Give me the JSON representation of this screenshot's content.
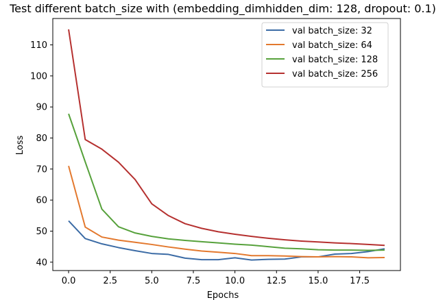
{
  "chart_data": {
    "type": "line",
    "title": "Test different batch_size with (embedding_dimhidden_dim: 128, dropout: 0.1)",
    "xlabel": "Epochs",
    "ylabel": "Loss",
    "xlim": [
      -0.95,
      19.95
    ],
    "ylim": [
      37.3,
      118.5
    ],
    "xticks": [
      0.0,
      2.5,
      5.0,
      7.5,
      10.0,
      12.5,
      15.0,
      17.5
    ],
    "xtick_labels": [
      "0.0",
      "2.5",
      "5.0",
      "7.5",
      "10.0",
      "12.5",
      "15.0",
      "17.5"
    ],
    "yticks": [
      40,
      50,
      60,
      70,
      80,
      90,
      100,
      110
    ],
    "ytick_labels": [
      "40",
      "50",
      "60",
      "70",
      "80",
      "90",
      "100",
      "110"
    ],
    "grid": false,
    "legend_position": "top-right",
    "x": [
      0,
      1,
      2,
      3,
      4,
      5,
      6,
      7,
      8,
      9,
      10,
      11,
      12,
      13,
      14,
      15,
      16,
      17,
      18,
      19
    ],
    "series": [
      {
        "name": "val batch_size: 32",
        "color": "#3b6ba5",
        "values": [
          53.3,
          47.6,
          45.9,
          44.7,
          43.7,
          42.8,
          42.5,
          41.3,
          40.8,
          40.8,
          41.4,
          40.7,
          40.9,
          41.0,
          41.7,
          41.7,
          42.6,
          42.8,
          43.4,
          44.3
        ]
      },
      {
        "name": "val batch_size: 64",
        "color": "#e3782d",
        "values": [
          71.0,
          51.3,
          48.1,
          47.1,
          46.4,
          45.7,
          44.9,
          44.2,
          43.6,
          43.2,
          42.8,
          42.1,
          42.1,
          42.0,
          41.8,
          41.7,
          41.8,
          41.7,
          41.4,
          41.5
        ]
      },
      {
        "name": "val batch_size: 128",
        "color": "#56a13b",
        "values": [
          87.8,
          72.3,
          57.1,
          51.4,
          49.4,
          48.3,
          47.5,
          47.0,
          46.6,
          46.2,
          45.8,
          45.5,
          45.0,
          44.5,
          44.3,
          44.0,
          43.9,
          43.9,
          43.8,
          43.9
        ]
      },
      {
        "name": "val batch_size: 256",
        "color": "#b5302f",
        "values": [
          115.0,
          79.5,
          76.4,
          72.2,
          66.6,
          58.8,
          55.0,
          52.4,
          50.9,
          49.8,
          49.0,
          48.3,
          47.7,
          47.2,
          46.8,
          46.5,
          46.2,
          46.0,
          45.7,
          45.4
        ]
      }
    ]
  }
}
